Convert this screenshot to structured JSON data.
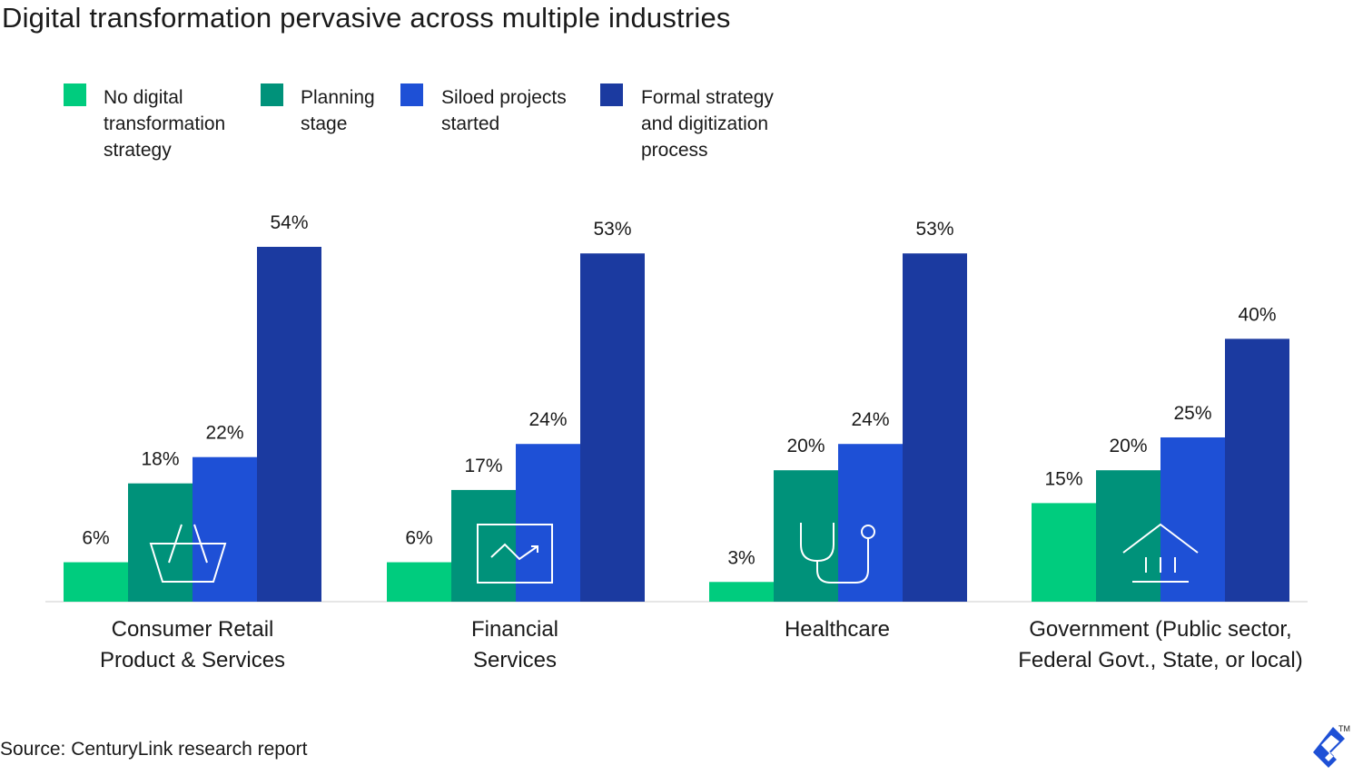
{
  "title": "Digital transformation pervasive across multiple industries",
  "source": "Source: CenturyLink research report",
  "logo_mark": "TM",
  "colors": {
    "no_strategy": "#00cc7e",
    "planning": "#00927a",
    "siloed": "#1e50d6",
    "formal": "#1b3aa0",
    "baseline": "#e6e6e6",
    "icon": "#ffffff",
    "logo": "#1e50d6"
  },
  "legend": [
    {
      "label": "No digital\ntransformation\nstrategy",
      "color": "#00cc7e"
    },
    {
      "label": "Planning\nstage",
      "color": "#00927a"
    },
    {
      "label": "Siloed projects\nstarted",
      "color": "#1e50d6"
    },
    {
      "label": "Formal strategy\nand digitization\nprocess",
      "color": "#1b3aa0"
    }
  ],
  "icons": [
    "basket-icon",
    "trending-chart-icon",
    "stethoscope-icon",
    "government-building-icon"
  ],
  "chart_data": {
    "type": "bar",
    "title": "Digital transformation pervasive across multiple industries",
    "categories": [
      "Consumer Retail\nProduct & Services",
      "Financial\nServices",
      "Healthcare",
      "Government (Public sector,\nFederal Govt., State, or local)"
    ],
    "series": [
      {
        "name": "No digital transformation strategy",
        "values": [
          6,
          6,
          3,
          15
        ],
        "labels": [
          "6%",
          "6%",
          "3%",
          "15%"
        ]
      },
      {
        "name": "Planning stage",
        "values": [
          18,
          17,
          20,
          20
        ],
        "labels": [
          "18%",
          "17%",
          "20%",
          "20%"
        ]
      },
      {
        "name": "Siloed projects started",
        "values": [
          22,
          24,
          24,
          25
        ],
        "labels": [
          "22%",
          "24%",
          "24%",
          "25%"
        ]
      },
      {
        "name": "Formal strategy and digitization process",
        "values": [
          54,
          53,
          53,
          40
        ],
        "labels": [
          "54%",
          "53%",
          "53%",
          "40%"
        ]
      }
    ],
    "unit": "%",
    "ylim": [
      0,
      54
    ],
    "grid": false,
    "legend_position": "top-left",
    "xlabel": "",
    "ylabel": ""
  }
}
